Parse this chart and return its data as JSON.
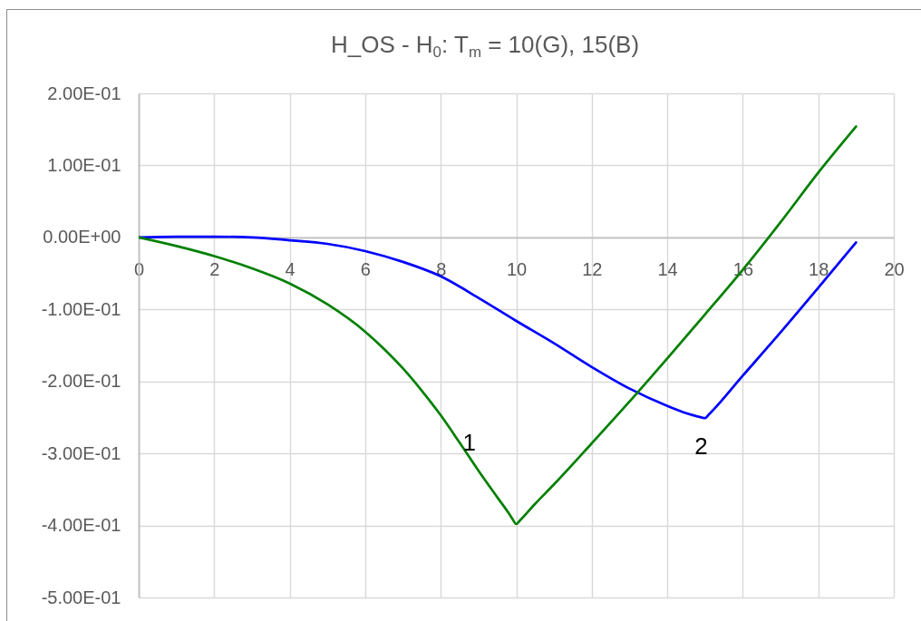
{
  "chart_data": {
    "type": "line",
    "title": "H_OS - H$_{0}$: T$_{m}$ = 10(G), 15(B)",
    "series": [
      {
        "color": "#0000ff",
        "x": [
          0,
          1,
          2,
          3,
          4,
          5,
          6,
          7,
          8,
          9,
          10,
          11,
          12,
          13,
          14,
          14.5,
          14.9,
          15,
          15.1,
          16,
          17,
          18,
          19
        ],
        "values": [
          0,
          0.001,
          0.001,
          0,
          -0.004,
          -0.009,
          -0.019,
          -0.034,
          -0.054,
          -0.084,
          -0.116,
          -0.147,
          -0.18,
          -0.21,
          -0.234,
          -0.244,
          -0.25,
          -0.251,
          -0.246,
          -0.192,
          -0.132,
          -0.07,
          -0.007
        ]
      },
      {
        "color": "#008000",
        "x": [
          0,
          1,
          2,
          3,
          4,
          5,
          6,
          6.5,
          7,
          7.5,
          8,
          8.5,
          9,
          9.5,
          9.8,
          9.9,
          10,
          10.1,
          10.5,
          11,
          12,
          13,
          14,
          15,
          16,
          17,
          18,
          19
        ],
        "values": [
          0,
          -0.012,
          -0.026,
          -0.043,
          -0.064,
          -0.093,
          -0.131,
          -0.155,
          -0.182,
          -0.213,
          -0.247,
          -0.285,
          -0.324,
          -0.361,
          -0.383,
          -0.391,
          -0.398,
          -0.393,
          -0.37,
          -0.343,
          -0.286,
          -0.228,
          -0.168,
          -0.107,
          -0.045,
          0.021,
          0.09,
          0.154
        ]
      }
    ],
    "xlim": [
      0,
      20
    ],
    "xticks": [
      0,
      2,
      4,
      6,
      8,
      10,
      12,
      14,
      16,
      18,
      20
    ],
    "ylim": [
      -0.5,
      0.2
    ],
    "yticks": [
      {
        "value": 0.2,
        "label": "2.00E-01"
      },
      {
        "value": 0.1,
        "label": "1.00E-01"
      },
      {
        "value": 0,
        "label": "0.00E+00"
      },
      {
        "value": -0.1,
        "label": "-1.00E-01"
      },
      {
        "value": -0.2,
        "label": "-2.00E-01"
      },
      {
        "value": -0.3,
        "label": "-3.00E-01"
      },
      {
        "value": -0.4,
        "label": "-4.00E-01"
      },
      {
        "value": -0.5,
        "label": "-5.00E-01"
      }
    ],
    "grid": true,
    "annotations": [
      "1",
      "2"
    ]
  }
}
